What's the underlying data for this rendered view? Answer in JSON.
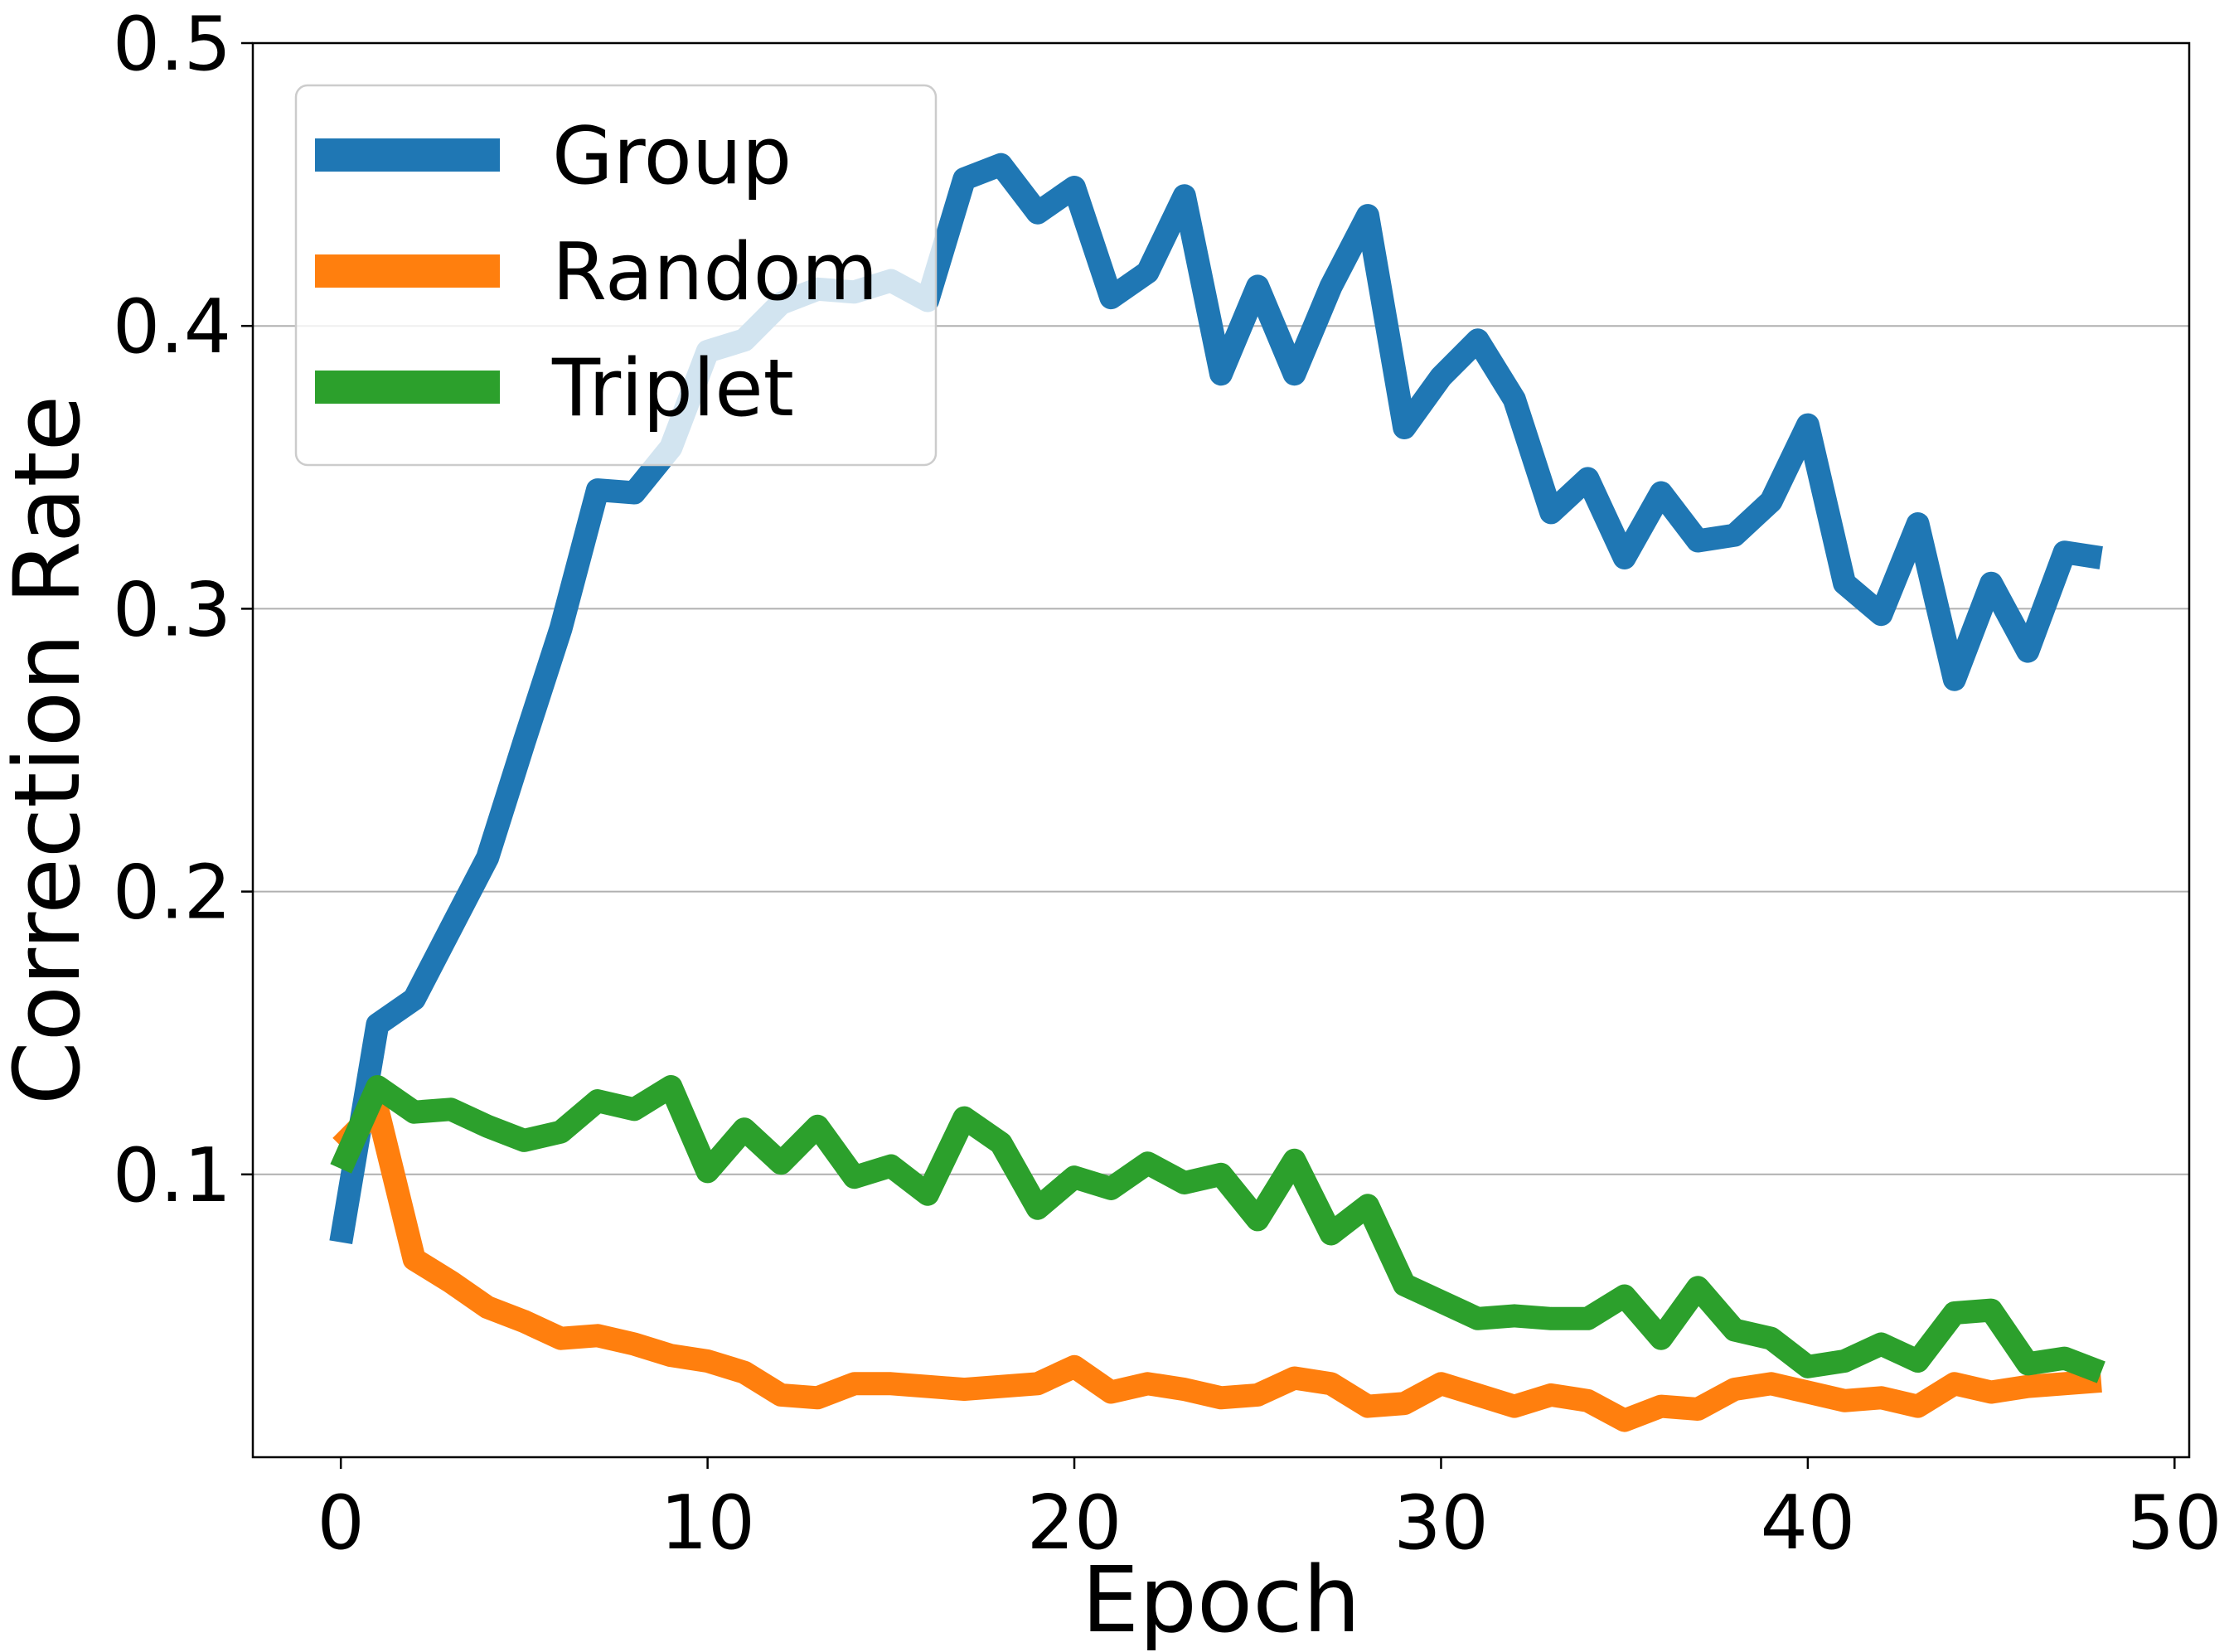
{
  "chart_data": {
    "type": "line",
    "title": "",
    "xlabel": "Epoch",
    "ylabel": "Correction Rate",
    "xlim": [
      -2.4,
      50.4
    ],
    "ylim": [
      0.0,
      0.5
    ],
    "xticks": [
      0,
      10,
      20,
      30,
      40,
      50
    ],
    "xtick_labels": [
      "0",
      "10",
      "20",
      "30",
      "40",
      "50"
    ],
    "yticks": [
      0.1,
      0.2,
      0.3,
      0.4,
      0.5
    ],
    "ytick_labels": [
      "0.1",
      "0.2",
      "0.3",
      "0.4",
      "0.5"
    ],
    "grid": "horizontal",
    "legend_position": "top-left",
    "x": [
      0,
      1,
      2,
      3,
      4,
      5,
      6,
      7,
      8,
      9,
      10,
      11,
      12,
      13,
      14,
      15,
      16,
      17,
      18,
      19,
      20,
      21,
      22,
      23,
      24,
      25,
      26,
      27,
      28,
      29,
      30,
      31,
      32,
      33,
      34,
      35,
      36,
      37,
      38,
      39,
      40,
      41,
      42,
      43,
      44,
      45,
      46,
      47,
      48
    ],
    "series": [
      {
        "name": "Group",
        "color": "#1f77b4",
        "values": [
          0.076,
          0.153,
          0.162,
          0.187,
          0.212,
          0.253,
          0.293,
          0.342,
          0.341,
          0.357,
          0.391,
          0.395,
          0.408,
          0.413,
          0.412,
          0.416,
          0.409,
          0.452,
          0.457,
          0.44,
          0.449,
          0.41,
          0.419,
          0.446,
          0.383,
          0.414,
          0.383,
          0.414,
          0.439,
          0.364,
          0.382,
          0.395,
          0.374,
          0.334,
          0.346,
          0.318,
          0.341,
          0.324,
          0.326,
          0.338,
          0.365,
          0.309,
          0.298,
          0.33,
          0.275,
          0.309,
          0.285,
          0.32,
          0.318
        ]
      },
      {
        "name": "Random",
        "color": "#ff7f0e",
        "values": [
          0.11,
          0.123,
          0.07,
          0.062,
          0.053,
          0.048,
          0.042,
          0.043,
          0.04,
          0.036,
          0.034,
          0.03,
          0.022,
          0.021,
          0.026,
          0.026,
          0.025,
          0.024,
          0.025,
          0.026,
          0.032,
          0.023,
          0.026,
          0.024,
          0.021,
          0.022,
          0.028,
          0.026,
          0.018,
          0.019,
          0.026,
          0.022,
          0.018,
          0.022,
          0.02,
          0.013,
          0.018,
          0.017,
          0.024,
          0.026,
          0.023,
          0.02,
          0.021,
          0.018,
          0.026,
          0.023,
          0.025,
          0.026,
          0.027
        ]
      },
      {
        "name": "Triplet",
        "color": "#2ca02c",
        "values": [
          0.102,
          0.131,
          0.122,
          0.123,
          0.117,
          0.112,
          0.115,
          0.126,
          0.123,
          0.131,
          0.101,
          0.116,
          0.104,
          0.117,
          0.099,
          0.103,
          0.093,
          0.12,
          0.111,
          0.088,
          0.099,
          0.095,
          0.104,
          0.097,
          0.1,
          0.084,
          0.105,
          0.079,
          0.089,
          0.061,
          0.055,
          0.049,
          0.05,
          0.049,
          0.049,
          0.057,
          0.042,
          0.06,
          0.045,
          0.042,
          0.032,
          0.034,
          0.04,
          0.034,
          0.051,
          0.052,
          0.033,
          0.035,
          0.03
        ]
      }
    ]
  }
}
